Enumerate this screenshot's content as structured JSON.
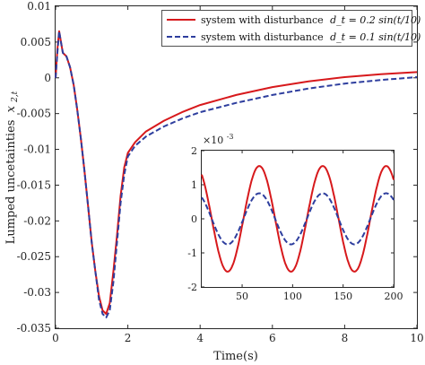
{
  "chart_data": [
    {
      "type": "line",
      "xlabel": "Time(s)",
      "ylabel": "Lumped uncetainties",
      "ylabel_symbol": "x",
      "ylabel_subscript": "2,t",
      "xlim": [
        0,
        10
      ],
      "ylim": [
        -0.035,
        0.01
      ],
      "x_ticks": [
        0,
        2,
        4,
        6,
        8,
        10
      ],
      "y_ticks": [
        0.01,
        0.005,
        0,
        -0.005,
        -0.01,
        -0.015,
        -0.02,
        -0.025,
        -0.03,
        -0.035
      ],
      "y_tick_labels": [
        "0.01",
        "0.005",
        "0",
        "-0.005",
        "-0.01",
        "-0.015",
        "-0.02",
        "-0.025",
        "-0.03",
        "-0.035"
      ],
      "grid": false,
      "legend_position": "top-right",
      "series": [
        {
          "name": "system with disturbance",
          "name_math": "d_t = 0.2 sin(t/10)",
          "color": "#d7191c",
          "style": "solid",
          "x": [
            0,
            0.05,
            0.1,
            0.15,
            0.2,
            0.3,
            0.4,
            0.5,
            0.6,
            0.7,
            0.8,
            0.9,
            1.0,
            1.1,
            1.2,
            1.3,
            1.4,
            1.5,
            1.6,
            1.7,
            1.8,
            1.9,
            2.0,
            2.2,
            2.5,
            3.0,
            3.5,
            4.0,
            5.0,
            6.0,
            7.0,
            8.0,
            9.0,
            10.0
          ],
          "y": [
            0,
            0.004,
            0.0065,
            0.005,
            0.0035,
            0.003,
            0.0015,
            -0.001,
            -0.0045,
            -0.0085,
            -0.013,
            -0.018,
            -0.023,
            -0.027,
            -0.0305,
            -0.0325,
            -0.033,
            -0.0315,
            -0.027,
            -0.022,
            -0.0165,
            -0.0125,
            -0.0105,
            -0.009,
            -0.0075,
            -0.006,
            -0.0048,
            -0.0038,
            -0.0024,
            -0.0013,
            -0.0005,
            0.0001,
            0.0005,
            0.0008
          ]
        },
        {
          "name": "system with disturbance",
          "name_math": "d_t = 0.1 sin(t/10)",
          "color": "#2e3e9e",
          "style": "dashed",
          "x": [
            0,
            0.05,
            0.1,
            0.15,
            0.2,
            0.3,
            0.4,
            0.5,
            0.6,
            0.7,
            0.8,
            0.9,
            1.0,
            1.1,
            1.2,
            1.3,
            1.4,
            1.5,
            1.6,
            1.7,
            1.8,
            1.9,
            2.0,
            2.2,
            2.5,
            3.0,
            3.5,
            4.0,
            5.0,
            6.0,
            7.0,
            8.0,
            9.0,
            10.0
          ],
          "y": [
            0,
            0.0035,
            0.0065,
            0.005,
            0.0035,
            0.003,
            0.0015,
            -0.001,
            -0.0045,
            -0.0085,
            -0.013,
            -0.018,
            -0.023,
            -0.027,
            -0.031,
            -0.033,
            -0.0335,
            -0.0325,
            -0.0285,
            -0.023,
            -0.0175,
            -0.0135,
            -0.011,
            -0.0095,
            -0.0082,
            -0.0068,
            -0.0057,
            -0.0048,
            -0.0035,
            -0.0024,
            -0.0015,
            -0.0008,
            -0.0003,
            0.0001
          ]
        }
      ]
    },
    {
      "type": "line",
      "xlim": [
        10,
        200
      ],
      "ylim": [
        -2,
        2
      ],
      "x_ticks": [
        50,
        100,
        150,
        200
      ],
      "y_ticks": [
        2,
        1,
        0,
        -1,
        -2
      ],
      "y_tick_labels": [
        "2",
        "1",
        "0",
        "-1",
        "-2"
      ],
      "y_exponent_base": "×10",
      "y_exponent_power": "-3",
      "grid": false,
      "series": [
        {
          "color": "#d7191c",
          "style": "solid",
          "amplitude": 1.55,
          "period": 62.8,
          "peaks_at": [
            67,
            130,
            193
          ],
          "troughs_at": [
            36,
            98,
            161
          ]
        },
        {
          "color": "#2e3e9e",
          "style": "dashed",
          "amplitude": 0.75,
          "period": 62.8,
          "peaks_at": [
            67,
            130,
            193
          ],
          "troughs_at": [
            36,
            98,
            161
          ]
        }
      ]
    }
  ]
}
